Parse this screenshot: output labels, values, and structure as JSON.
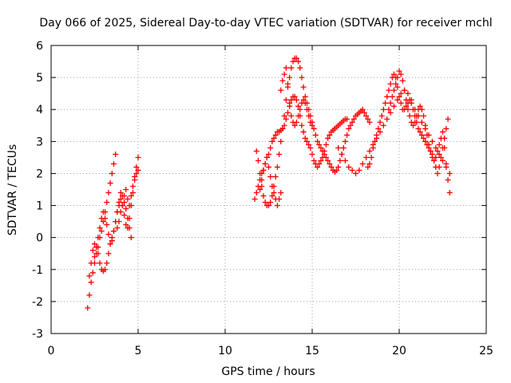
{
  "chart_data": {
    "type": "scatter",
    "title": "Day 066 of 2025, Sidereal Day-to-day VTEC variation (SDTVAR) for receiver mchl",
    "xlabel": "GPS time / hours",
    "ylabel": "SDTVAR / TECUs",
    "xlim": [
      0,
      25
    ],
    "ylim": [
      -3,
      6
    ],
    "xticks": [
      "0",
      "5",
      "10",
      "15",
      "20",
      "25"
    ],
    "yticks": [
      "-3",
      "-2",
      "-1",
      "0",
      "1",
      "2",
      "3",
      "4",
      "5",
      "6"
    ],
    "grid": true,
    "marker": "plus",
    "color": "#ff0000",
    "series": [
      {
        "x": [
          2.1,
          2.2,
          2.3,
          2.4,
          2.5,
          2.6,
          2.7,
          2.8,
          2.9,
          3.0,
          3.1,
          3.2,
          3.3,
          3.4,
          3.5,
          3.6,
          3.7,
          3.8,
          3.9,
          4.0,
          4.1,
          4.2,
          4.3,
          4.4,
          4.5,
          4.6,
          4.7,
          4.8,
          4.9,
          5.0,
          2.2,
          2.3,
          2.4,
          2.5,
          2.6,
          2.7,
          2.8,
          2.9,
          3.0,
          3.1,
          3.2,
          3.3,
          3.4,
          3.5,
          3.6,
          3.7,
          3.8,
          3.9,
          4.0,
          4.1,
          4.2,
          4.3,
          4.4,
          4.5,
          4.6,
          4.7,
          4.8,
          4.9,
          5.0,
          2.5,
          2.6,
          2.7,
          2.8,
          2.9,
          3.0,
          3.1,
          3.2,
          3.3,
          3.4,
          3.5,
          3.6,
          3.7,
          3.8,
          3.9,
          4.0,
          4.1,
          4.2,
          4.3,
          4.4,
          4.5,
          4.6
        ],
        "y": [
          -2.2,
          -1.8,
          -1.4,
          -1.1,
          -0.8,
          -0.5,
          -0.3,
          0.0,
          0.2,
          0.5,
          0.8,
          1.1,
          1.4,
          1.7,
          2.0,
          2.3,
          2.6,
          0.3,
          0.5,
          0.8,
          1.0,
          1.3,
          1.5,
          1.2,
          1.0,
          1.3,
          1.6,
          1.9,
          2.2,
          2.5,
          -1.2,
          -0.8,
          -0.4,
          -0.2,
          -0.3,
          -0.5,
          -0.8,
          -1.0,
          -1.05,
          -1.0,
          -0.8,
          -0.5,
          -0.2,
          0.0,
          0.2,
          0.5,
          0.8,
          1.0,
          1.2,
          1.0,
          0.7,
          0.4,
          0.3,
          0.6,
          1.0,
          1.4,
          1.8,
          2.0,
          2.1,
          -0.6,
          -0.3,
          0.0,
          0.3,
          0.6,
          0.8,
          0.6,
          0.4,
          0.1,
          -0.2,
          -0.1,
          0.2,
          0.5,
          0.8,
          1.1,
          1.4,
          1.3,
          1.1,
          0.9,
          0.6,
          0.3,
          0.0
        ]
      },
      {
        "x": [
          11.7,
          11.8,
          11.9,
          12.0,
          12.1,
          12.2,
          12.3,
          12.4,
          12.5,
          12.6,
          12.7,
          12.8,
          12.9,
          13.0,
          13.1,
          13.2,
          13.3,
          13.4,
          13.5,
          13.6,
          13.7,
          13.8,
          13.9,
          14.0,
          14.1,
          14.2,
          14.3,
          14.4,
          14.5,
          14.6,
          14.7,
          14.8,
          14.9,
          15.0,
          15.1,
          15.2,
          15.3,
          15.4,
          15.5,
          15.6,
          15.7,
          15.8,
          15.9,
          16.0,
          16.1,
          16.2,
          16.3,
          16.4,
          16.5,
          16.6,
          16.7,
          16.8,
          16.9,
          17.0,
          11.8,
          11.9,
          12.0,
          12.1,
          12.2,
          12.3,
          12.4,
          12.5,
          12.6,
          12.7,
          12.8,
          12.9,
          13.0,
          13.1,
          13.2,
          13.3,
          13.4,
          13.5,
          13.6,
          13.7,
          13.8,
          13.9,
          14.0,
          14.1,
          14.2,
          14.3,
          14.4,
          14.5,
          14.6,
          14.7,
          14.8,
          14.9,
          15.0,
          15.1,
          15.2,
          15.3,
          15.4,
          15.5,
          15.6,
          15.7,
          15.8,
          15.9,
          16.0,
          16.1,
          16.2,
          16.3,
          16.4,
          16.5,
          16.6,
          16.7,
          16.8,
          16.9,
          17.0,
          17.1,
          17.2,
          17.3,
          17.4,
          17.5,
          17.6,
          17.7,
          17.8,
          17.9,
          18.0,
          18.1,
          18.2,
          18.3,
          12.0,
          12.1,
          12.2,
          12.3,
          12.4,
          12.5,
          12.6,
          12.7,
          12.8,
          12.9,
          13.0,
          13.1,
          13.2,
          13.2,
          13.3,
          13.4,
          13.5,
          13.6,
          13.7,
          13.8,
          13.9,
          14.0,
          14.1,
          14.2,
          14.3,
          14.4,
          14.5,
          14.6,
          14.7,
          14.8,
          14.9,
          15.0,
          18.2,
          18.3,
          18.4,
          18.5,
          18.6,
          18.7,
          18.8,
          18.9,
          19.0,
          19.1,
          19.2,
          19.3,
          19.4,
          19.5,
          19.6,
          19.7,
          19.8,
          19.9,
          20.0,
          20.1,
          20.2,
          20.3,
          20.4,
          20.5,
          20.6,
          20.7,
          20.8,
          20.9,
          21.0,
          21.1,
          21.2,
          21.3,
          21.4,
          21.5,
          21.6,
          21.7,
          21.8,
          21.9,
          22.0,
          22.1,
          22.2,
          22.3,
          22.4,
          22.5,
          22.6,
          22.7,
          22.8,
          16.5,
          16.7,
          16.9,
          17.1,
          17.3,
          17.5,
          17.7,
          17.9,
          18.1,
          18.3,
          18.5,
          18.7,
          18.9,
          19.1,
          19.3,
          19.5,
          19.7,
          19.9,
          20.1,
          20.3,
          20.5,
          20.7,
          20.9,
          21.1,
          21.3,
          21.5,
          21.7,
          21.9,
          22.1,
          22.3,
          22.5,
          22.7,
          22.9,
          19.4,
          19.5,
          19.6,
          19.7,
          19.8,
          19.9,
          20.0,
          20.1,
          20.2,
          20.3,
          20.4,
          20.5,
          20.6,
          20.7,
          20.8,
          20.9,
          21.0,
          21.1,
          21.2,
          21.3,
          21.4,
          21.5,
          21.6,
          21.7,
          21.8,
          21.9,
          22.0,
          22.1,
          22.2,
          22.3,
          22.4,
          22.5,
          22.6,
          22.7,
          22.8,
          22.9
        ],
        "y": [
          1.2,
          1.4,
          1.6,
          1.8,
          2.0,
          2.1,
          2.3,
          2.5,
          2.6,
          2.8,
          3.0,
          3.1,
          3.2,
          3.3,
          3.3,
          3.35,
          3.4,
          3.5,
          3.7,
          3.9,
          4.1,
          4.3,
          4.4,
          4.4,
          4.3,
          4.1,
          3.8,
          3.5,
          3.3,
          3.1,
          3.0,
          2.9,
          2.8,
          2.6,
          2.4,
          2.3,
          2.2,
          2.3,
          2.4,
          2.5,
          2.7,
          2.9,
          3.1,
          3.2,
          3.3,
          3.35,
          3.4,
          3.45,
          3.5,
          3.55,
          3.6,
          3.65,
          3.7,
          3.7,
          2.7,
          2.4,
          2.0,
          1.6,
          1.3,
          1.1,
          1.0,
          1.0,
          1.1,
          1.3,
          1.6,
          1.9,
          2.2,
          2.6,
          3.0,
          3.4,
          3.8,
          4.3,
          4.7,
          5.0,
          5.3,
          5.5,
          5.6,
          5.6,
          5.5,
          5.3,
          5.0,
          4.7,
          4.4,
          4.2,
          4.0,
          3.8,
          3.6,
          3.4,
          3.2,
          3.0,
          2.9,
          2.8,
          2.7,
          2.6,
          2.5,
          2.4,
          2.3,
          2.2,
          2.1,
          2.05,
          2.1,
          2.2,
          2.4,
          2.6,
          2.8,
          3.0,
          3.2,
          3.4,
          3.5,
          3.6,
          3.7,
          3.8,
          3.85,
          3.9,
          3.95,
          4.0,
          3.9,
          3.8,
          3.7,
          3.6,
          1.5,
          1.8,
          2.1,
          2.3,
          2.5,
          2.2,
          1.9,
          1.6,
          1.4,
          1.2,
          1.0,
          1.2,
          1.4,
          4.6,
          4.9,
          5.1,
          5.3,
          4.8,
          4.2,
          3.8,
          3.6,
          3.5,
          3.6,
          3.8,
          4.0,
          4.2,
          4.3,
          4.2,
          4.0,
          3.8,
          3.6,
          3.5,
          2.2,
          2.3,
          2.5,
          2.8,
          3.0,
          3.2,
          3.4,
          3.6,
          3.8,
          4.0,
          4.2,
          4.4,
          4.6,
          4.8,
          5.0,
          5.1,
          5.0,
          4.7,
          4.4,
          4.2,
          4.0,
          4.0,
          4.1,
          4.2,
          4.3,
          4.2,
          4.0,
          3.8,
          3.6,
          3.4,
          3.3,
          3.2,
          3.1,
          3.0,
          2.9,
          2.8,
          2.7,
          2.6,
          2.4,
          2.2,
          2.0,
          2.2,
          2.5,
          2.8,
          3.1,
          3.4,
          3.7,
          2.8,
          2.6,
          2.4,
          2.2,
          2.1,
          2.0,
          2.1,
          2.3,
          2.5,
          2.7,
          2.9,
          3.1,
          3.3,
          3.5,
          3.7,
          3.9,
          4.1,
          4.3,
          4.5,
          4.6,
          4.5,
          4.3,
          4.0,
          3.8,
          3.6,
          3.4,
          3.2,
          3.0,
          2.8,
          2.6,
          2.4,
          2.2,
          2.0,
          4.0,
          4.2,
          4.4,
          4.6,
          4.8,
          5.0,
          5.2,
          5.1,
          4.9,
          4.6,
          4.3,
          4.0,
          3.8,
          3.6,
          3.5,
          3.6,
          3.8,
          4.0,
          4.1,
          4.0,
          3.8,
          3.5,
          3.2,
          2.9,
          2.7,
          2.5,
          2.4,
          2.5,
          2.7,
          2.9,
          3.1,
          3.3,
          2.8,
          2.3,
          1.8,
          1.4
        ]
      }
    ]
  }
}
